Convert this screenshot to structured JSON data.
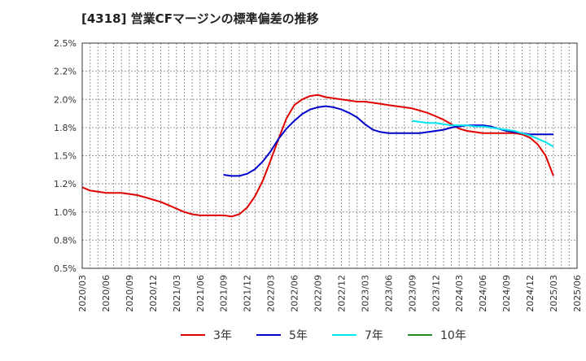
{
  "chart_data": {
    "type": "line",
    "title": "[4318]  営業CFマージンの標準偏差の推移",
    "xlabel": "",
    "ylabel": "",
    "ylim": [
      0.5,
      2.5
    ],
    "yticks": [
      "0.5%",
      "0.8%",
      "1.0%",
      "1.2%",
      "1.5%",
      "1.8%",
      "2.0%",
      "2.2%",
      "2.5%"
    ],
    "xticks": [
      "2020/03",
      "2020/06",
      "2020/09",
      "2020/12",
      "2021/03",
      "2021/06",
      "2021/09",
      "2021/12",
      "2022/03",
      "2022/06",
      "2022/09",
      "2022/12",
      "2023/03",
      "2023/06",
      "2023/09",
      "2023/12",
      "2024/03",
      "2024/06",
      "2024/09",
      "2024/12",
      "2025/03",
      "2025/06"
    ],
    "grid": true,
    "legend_position": "bottom",
    "series": [
      {
        "name": "3年",
        "color": "#e00000",
        "points": [
          [
            "2020/03",
            1.22
          ],
          [
            "2020/04",
            1.19
          ],
          [
            "2020/05",
            1.18
          ],
          [
            "2020/06",
            1.17
          ],
          [
            "2020/07",
            1.17
          ],
          [
            "2020/08",
            1.17
          ],
          [
            "2020/09",
            1.16
          ],
          [
            "2020/10",
            1.15
          ],
          [
            "2020/11",
            1.13
          ],
          [
            "2020/12",
            1.11
          ],
          [
            "2021/01",
            1.09
          ],
          [
            "2021/02",
            1.06
          ],
          [
            "2021/03",
            1.03
          ],
          [
            "2021/04",
            1.0
          ],
          [
            "2021/05",
            0.98
          ],
          [
            "2021/06",
            0.97
          ],
          [
            "2021/07",
            0.97
          ],
          [
            "2021/08",
            0.97
          ],
          [
            "2021/09",
            0.97
          ],
          [
            "2021/10",
            0.96
          ],
          [
            "2021/11",
            0.98
          ],
          [
            "2021/12",
            1.04
          ],
          [
            "2022/01",
            1.14
          ],
          [
            "2022/02",
            1.28
          ],
          [
            "2022/03",
            1.46
          ],
          [
            "2022/04",
            1.65
          ],
          [
            "2022/05",
            1.83
          ],
          [
            "2022/06",
            1.95
          ],
          [
            "2022/07",
            2.0
          ],
          [
            "2022/08",
            2.03
          ],
          [
            "2022/09",
            2.04
          ],
          [
            "2022/10",
            2.02
          ],
          [
            "2022/11",
            2.01
          ],
          [
            "2022/12",
            2.0
          ],
          [
            "2023/01",
            1.99
          ],
          [
            "2023/02",
            1.98
          ],
          [
            "2023/03",
            1.98
          ],
          [
            "2023/04",
            1.97
          ],
          [
            "2023/05",
            1.96
          ],
          [
            "2023/06",
            1.95
          ],
          [
            "2023/07",
            1.94
          ],
          [
            "2023/08",
            1.93
          ],
          [
            "2023/09",
            1.92
          ],
          [
            "2023/10",
            1.9
          ],
          [
            "2023/11",
            1.88
          ],
          [
            "2023/12",
            1.85
          ],
          [
            "2024/01",
            1.82
          ],
          [
            "2024/02",
            1.78
          ],
          [
            "2024/03",
            1.74
          ],
          [
            "2024/04",
            1.72
          ],
          [
            "2024/05",
            1.71
          ],
          [
            "2024/06",
            1.7
          ],
          [
            "2024/07",
            1.7
          ],
          [
            "2024/08",
            1.7
          ],
          [
            "2024/09",
            1.7
          ],
          [
            "2024/10",
            1.7
          ],
          [
            "2024/11",
            1.69
          ],
          [
            "2024/12",
            1.66
          ],
          [
            "2025/01",
            1.6
          ],
          [
            "2025/02",
            1.5
          ],
          [
            "2025/03",
            1.32
          ]
        ]
      },
      {
        "name": "5年",
        "color": "#0000cc",
        "points": [
          [
            "2021/09",
            1.33
          ],
          [
            "2021/10",
            1.32
          ],
          [
            "2021/11",
            1.32
          ],
          [
            "2021/12",
            1.34
          ],
          [
            "2022/01",
            1.38
          ],
          [
            "2022/02",
            1.45
          ],
          [
            "2022/03",
            1.54
          ],
          [
            "2022/04",
            1.65
          ],
          [
            "2022/05",
            1.74
          ],
          [
            "2022/06",
            1.81
          ],
          [
            "2022/07",
            1.87
          ],
          [
            "2022/08",
            1.91
          ],
          [
            "2022/09",
            1.93
          ],
          [
            "2022/10",
            1.94
          ],
          [
            "2022/11",
            1.93
          ],
          [
            "2022/12",
            1.91
          ],
          [
            "2023/01",
            1.88
          ],
          [
            "2023/02",
            1.84
          ],
          [
            "2023/03",
            1.78
          ],
          [
            "2023/04",
            1.73
          ],
          [
            "2023/05",
            1.71
          ],
          [
            "2023/06",
            1.7
          ],
          [
            "2023/07",
            1.7
          ],
          [
            "2023/08",
            1.7
          ],
          [
            "2023/09",
            1.7
          ],
          [
            "2023/10",
            1.7
          ],
          [
            "2023/11",
            1.71
          ],
          [
            "2023/12",
            1.72
          ],
          [
            "2024/01",
            1.73
          ],
          [
            "2024/02",
            1.75
          ],
          [
            "2024/03",
            1.76
          ],
          [
            "2024/04",
            1.77
          ],
          [
            "2024/05",
            1.77
          ],
          [
            "2024/06",
            1.77
          ],
          [
            "2024/07",
            1.76
          ],
          [
            "2024/08",
            1.74
          ],
          [
            "2024/09",
            1.72
          ],
          [
            "2024/10",
            1.71
          ],
          [
            "2024/11",
            1.7
          ],
          [
            "2024/12",
            1.69
          ],
          [
            "2025/01",
            1.69
          ],
          [
            "2025/02",
            1.69
          ],
          [
            "2025/03",
            1.69
          ]
        ]
      },
      {
        "name": "7年",
        "color": "#00e5ee",
        "points": [
          [
            "2023/09",
            1.81
          ],
          [
            "2023/10",
            1.8
          ],
          [
            "2023/11",
            1.79
          ],
          [
            "2023/12",
            1.79
          ],
          [
            "2024/01",
            1.78
          ],
          [
            "2024/02",
            1.77
          ],
          [
            "2024/03",
            1.77
          ],
          [
            "2024/04",
            1.77
          ],
          [
            "2024/05",
            1.76
          ],
          [
            "2024/06",
            1.76
          ],
          [
            "2024/07",
            1.75
          ],
          [
            "2024/08",
            1.74
          ],
          [
            "2024/09",
            1.73
          ],
          [
            "2024/10",
            1.72
          ],
          [
            "2024/11",
            1.7
          ],
          [
            "2024/12",
            1.68
          ],
          [
            "2025/01",
            1.65
          ],
          [
            "2025/02",
            1.62
          ],
          [
            "2025/03",
            1.58
          ]
        ]
      },
      {
        "name": "10年",
        "color": "#228b22",
        "points": []
      }
    ]
  }
}
